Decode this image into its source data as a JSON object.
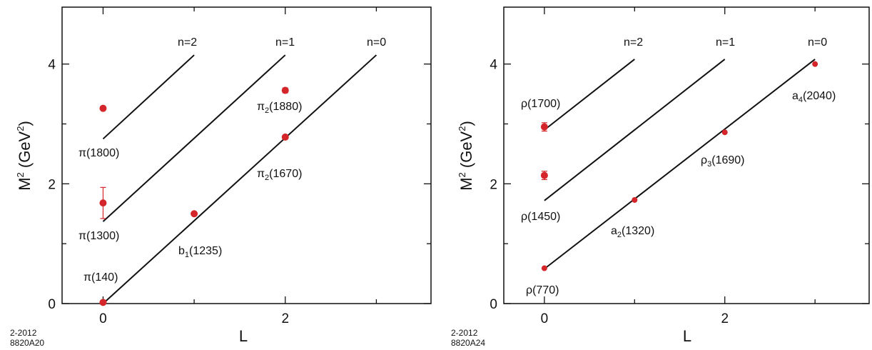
{
  "chart_data": [
    {
      "type": "line",
      "xlabel": "L",
      "ylabel": "M² (GeV²)",
      "xlim": [
        -0.45,
        3.6
      ],
      "ylim": [
        0,
        4.95
      ],
      "x_ticks": [
        0,
        2
      ],
      "y_ticks": [
        0,
        2,
        4
      ],
      "figure_code": [
        "2-2012",
        "8820A20"
      ],
      "trajectories": [
        {
          "label": "n=2",
          "x": [
            0,
            1
          ],
          "y": [
            2.75,
            4.15
          ]
        },
        {
          "label": "n=1",
          "x": [
            0,
            2
          ],
          "y": [
            1.37,
            4.15
          ]
        },
        {
          "label": "n=0",
          "x": [
            0,
            3
          ],
          "y": [
            0.0,
            4.15
          ]
        }
      ],
      "points": [
        {
          "label": "π(140)",
          "x": 0,
          "y": 0.02,
          "err": 0
        },
        {
          "label": "b1(1235)",
          "x": 1,
          "y": 1.5,
          "err": 0
        },
        {
          "label": "π2(1670)",
          "x": 2,
          "y": 2.78,
          "err": 0
        },
        {
          "label": "π(1300)",
          "x": 0,
          "y": 1.68,
          "err": 0.26
        },
        {
          "label": "π2(1880)",
          "x": 2,
          "y": 3.56,
          "err": 0.04
        },
        {
          "label": "π(1800)",
          "x": 0,
          "y": 3.26,
          "err": 0
        }
      ]
    },
    {
      "type": "line",
      "xlabel": "L",
      "ylabel": "M² (GeV²)",
      "xlim": [
        -0.45,
        3.6
      ],
      "ylim": [
        0,
        4.95
      ],
      "x_ticks": [
        0,
        2
      ],
      "y_ticks": [
        0,
        2,
        4
      ],
      "figure_code": [
        "2-2012",
        "8820A24"
      ],
      "trajectories": [
        {
          "label": "n=2",
          "x": [
            0,
            1
          ],
          "y": [
            2.9,
            4.08
          ]
        },
        {
          "label": "n=1",
          "x": [
            0,
            2
          ],
          "y": [
            1.72,
            4.08
          ]
        },
        {
          "label": "n=0",
          "x": [
            0,
            3
          ],
          "y": [
            0.58,
            4.08
          ]
        }
      ],
      "points": [
        {
          "label": "ρ(770)",
          "x": 0,
          "y": 0.59,
          "err": 0
        },
        {
          "label": "a2(1320)",
          "x": 1,
          "y": 1.73,
          "err": 0
        },
        {
          "label": "ρ3(1690)",
          "x": 2,
          "y": 2.86,
          "err": 0
        },
        {
          "label": "a4(2040)",
          "x": 3,
          "y": 4.0,
          "err": 0
        },
        {
          "label": "ρ(1450)",
          "x": 0,
          "y": 2.14,
          "err": 0.07
        },
        {
          "label": "ρ(1700)",
          "x": 0,
          "y": 2.95,
          "err": 0.07
        }
      ]
    }
  ]
}
